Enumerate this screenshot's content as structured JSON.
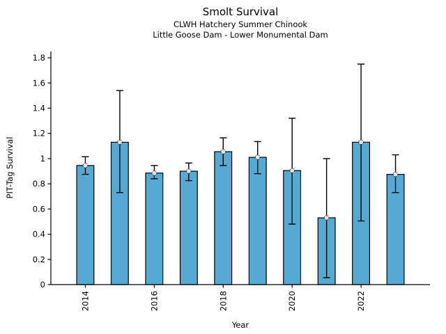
{
  "page": {
    "background": "#ffffff"
  },
  "chart_data": {
    "type": "bar",
    "title": "Smolt Survival",
    "subtitle_line1": "CLWH Hatchery Summer Chinook",
    "subtitle_line2": "Little Goose Dam - Lower Monumental Dam",
    "xlabel": "Year",
    "ylabel": "PIT-Tag Survival",
    "categories": [
      2014,
      2015,
      2016,
      2017,
      2018,
      2019,
      2020,
      2021,
      2022,
      2023
    ],
    "values": [
      0.945,
      1.13,
      0.885,
      0.9,
      1.055,
      1.01,
      0.905,
      0.53,
      1.13,
      0.875
    ],
    "error_low": [
      0.875,
      0.73,
      0.84,
      0.825,
      0.945,
      0.88,
      0.48,
      0.055,
      0.505,
      0.73
    ],
    "error_high": [
      1.015,
      1.54,
      0.945,
      0.965,
      1.165,
      1.135,
      1.32,
      1.0,
      1.75,
      1.03
    ],
    "xticks": [
      2014,
      2016,
      2018,
      2020,
      2022
    ],
    "xtick_labels": [
      "2014",
      "2016",
      "2018",
      "2020",
      "2022"
    ],
    "yticks": [
      0,
      0.2,
      0.4,
      0.6,
      0.8,
      1,
      1.2,
      1.4,
      1.6,
      1.8
    ],
    "ytick_labels": [
      "0",
      "0.2",
      "0.4",
      "0.6",
      "0.8",
      "1",
      "1.2",
      "1.4",
      "1.6",
      "1.8"
    ],
    "xlim": [
      2013,
      2024
    ],
    "ylim": [
      0,
      1.85
    ],
    "bar_width_years": 0.5,
    "grid": false,
    "legend_position": "none",
    "colors": {
      "bar_fill": "#56A9D2",
      "bar_edge": "#000000",
      "error_bar": "#000000",
      "marker_edge": "#2a2a2a",
      "marker_fill": "#ffffff",
      "axis": "#000000",
      "text": "#000000"
    }
  }
}
